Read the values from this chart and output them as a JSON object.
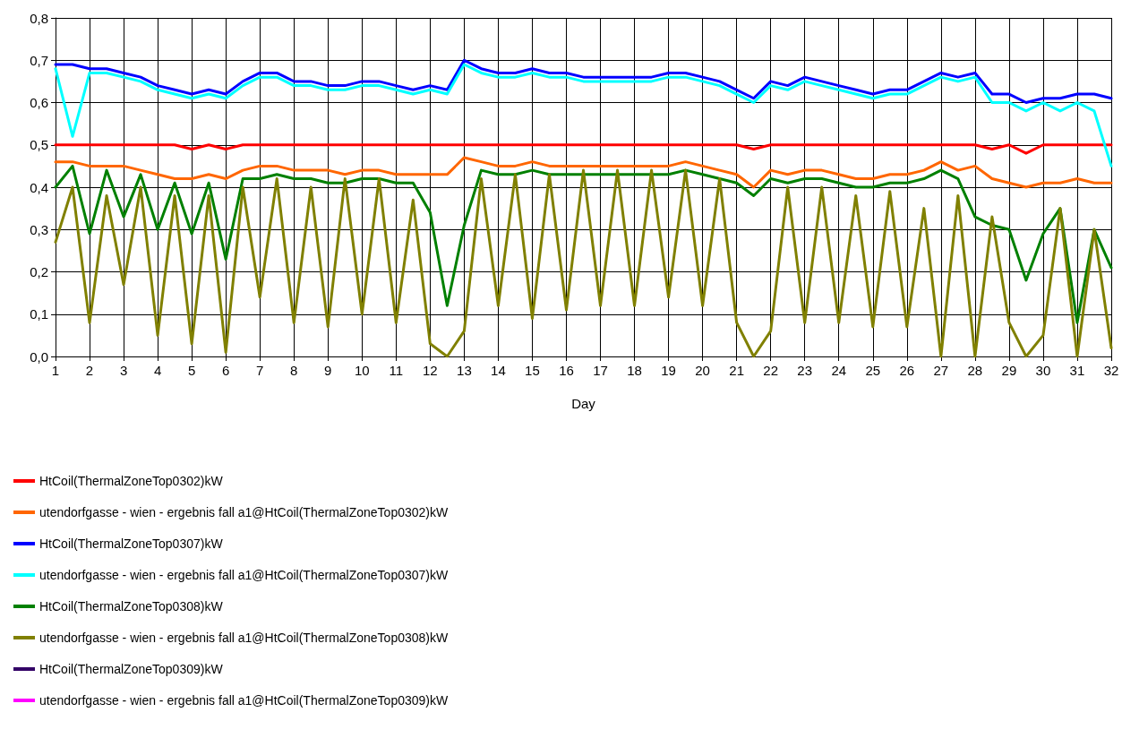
{
  "chart_data": {
    "type": "line",
    "xlabel": "Day",
    "x": [
      1,
      1.5,
      2,
      2.5,
      3,
      3.5,
      4,
      4.5,
      5,
      5.5,
      6,
      6.5,
      7,
      7.5,
      8,
      8.5,
      9,
      9.5,
      10,
      10.5,
      11,
      11.5,
      12,
      12.5,
      13,
      13.5,
      14,
      14.5,
      15,
      15.5,
      16,
      16.5,
      17,
      17.5,
      18,
      18.5,
      19,
      19.5,
      20,
      20.5,
      21,
      21.5,
      22,
      22.5,
      23,
      23.5,
      24,
      24.5,
      25,
      25.5,
      26,
      26.5,
      27,
      27.5,
      28,
      28.5,
      29,
      29.5,
      30,
      30.5,
      31,
      31.5,
      32
    ],
    "series": [
      {
        "name": "HtCoil(ThermalZoneTop0302)kW",
        "color": "#ff0000",
        "values": [
          0.5,
          0.5,
          0.5,
          0.5,
          0.5,
          0.5,
          0.5,
          0.5,
          0.49,
          0.5,
          0.49,
          0.5,
          0.5,
          0.5,
          0.5,
          0.5,
          0.5,
          0.5,
          0.5,
          0.5,
          0.5,
          0.5,
          0.5,
          0.5,
          0.5,
          0.5,
          0.5,
          0.5,
          0.5,
          0.5,
          0.5,
          0.5,
          0.5,
          0.5,
          0.5,
          0.5,
          0.5,
          0.5,
          0.5,
          0.5,
          0.5,
          0.49,
          0.5,
          0.5,
          0.5,
          0.5,
          0.5,
          0.5,
          0.5,
          0.5,
          0.5,
          0.5,
          0.5,
          0.5,
          0.5,
          0.49,
          0.5,
          0.48,
          0.5,
          0.5,
          0.5,
          0.5,
          0.5
        ]
      },
      {
        "name": "utendorfgasse - wien - ergebnis fall a1@HtCoil(ThermalZoneTop0302)kW",
        "color": "#ff6600",
        "values": [
          0.46,
          0.46,
          0.45,
          0.45,
          0.45,
          0.44,
          0.43,
          0.42,
          0.42,
          0.43,
          0.42,
          0.44,
          0.45,
          0.45,
          0.44,
          0.44,
          0.44,
          0.43,
          0.44,
          0.44,
          0.43,
          0.43,
          0.43,
          0.43,
          0.47,
          0.46,
          0.45,
          0.45,
          0.46,
          0.45,
          0.45,
          0.45,
          0.45,
          0.45,
          0.45,
          0.45,
          0.45,
          0.46,
          0.45,
          0.44,
          0.43,
          0.4,
          0.44,
          0.43,
          0.44,
          0.44,
          0.43,
          0.42,
          0.42,
          0.43,
          0.43,
          0.44,
          0.46,
          0.44,
          0.45,
          0.42,
          0.41,
          0.4,
          0.41,
          0.41,
          0.42,
          0.41,
          0.41
        ]
      },
      {
        "name": "HtCoil(ThermalZoneTop0307)kW",
        "color": "#0000ff",
        "values": [
          0.69,
          0.69,
          0.68,
          0.68,
          0.67,
          0.66,
          0.64,
          0.63,
          0.62,
          0.63,
          0.62,
          0.65,
          0.67,
          0.67,
          0.65,
          0.65,
          0.64,
          0.64,
          0.65,
          0.65,
          0.64,
          0.63,
          0.64,
          0.63,
          0.7,
          0.68,
          0.67,
          0.67,
          0.68,
          0.67,
          0.67,
          0.66,
          0.66,
          0.66,
          0.66,
          0.66,
          0.67,
          0.67,
          0.66,
          0.65,
          0.63,
          0.61,
          0.65,
          0.64,
          0.66,
          0.65,
          0.64,
          0.63,
          0.62,
          0.63,
          0.63,
          0.65,
          0.67,
          0.66,
          0.67,
          0.62,
          0.62,
          0.6,
          0.61,
          0.61,
          0.62,
          0.62,
          0.61
        ]
      },
      {
        "name": "utendorfgasse - wien - ergebnis fall a1@HtCoil(ThermalZoneTop0307)kW",
        "color": "#00ffff",
        "values": [
          0.68,
          0.52,
          0.67,
          0.67,
          0.66,
          0.65,
          0.63,
          0.62,
          0.61,
          0.62,
          0.61,
          0.64,
          0.66,
          0.66,
          0.64,
          0.64,
          0.63,
          0.63,
          0.64,
          0.64,
          0.63,
          0.62,
          0.63,
          0.62,
          0.69,
          0.67,
          0.66,
          0.66,
          0.67,
          0.66,
          0.66,
          0.65,
          0.65,
          0.65,
          0.65,
          0.65,
          0.66,
          0.66,
          0.65,
          0.64,
          0.62,
          0.6,
          0.64,
          0.63,
          0.65,
          0.64,
          0.63,
          0.62,
          0.61,
          0.62,
          0.62,
          0.64,
          0.66,
          0.65,
          0.66,
          0.6,
          0.6,
          0.58,
          0.6,
          0.58,
          0.6,
          0.58,
          0.45
        ]
      },
      {
        "name": "HtCoil(ThermalZoneTop0308)kW",
        "color": "#008000",
        "values": [
          0.4,
          0.45,
          0.29,
          0.44,
          0.33,
          0.43,
          0.3,
          0.41,
          0.29,
          0.41,
          0.23,
          0.42,
          0.42,
          0.43,
          0.42,
          0.42,
          0.41,
          0.41,
          0.42,
          0.42,
          0.41,
          0.41,
          0.34,
          0.12,
          0.31,
          0.44,
          0.43,
          0.43,
          0.44,
          0.43,
          0.43,
          0.43,
          0.43,
          0.43,
          0.43,
          0.43,
          0.43,
          0.44,
          0.43,
          0.42,
          0.41,
          0.38,
          0.42,
          0.41,
          0.42,
          0.42,
          0.41,
          0.4,
          0.4,
          0.41,
          0.41,
          0.42,
          0.44,
          0.42,
          0.33,
          0.31,
          0.3,
          0.18,
          0.29,
          0.35,
          0.08,
          0.3,
          0.21
        ]
      },
      {
        "name": "utendorfgasse - wien - ergebnis fall a1@HtCoil(ThermalZoneTop0308)kW",
        "color": "#808000",
        "values": [
          0.27,
          0.4,
          0.08,
          0.38,
          0.17,
          0.4,
          0.05,
          0.38,
          0.03,
          0.38,
          0.01,
          0.4,
          0.14,
          0.42,
          0.08,
          0.4,
          0.07,
          0.42,
          0.1,
          0.42,
          0.08,
          0.37,
          0.03,
          0.0,
          0.06,
          0.42,
          0.12,
          0.43,
          0.09,
          0.43,
          0.11,
          0.44,
          0.12,
          0.44,
          0.12,
          0.44,
          0.14,
          0.44,
          0.12,
          0.42,
          0.08,
          0.0,
          0.06,
          0.4,
          0.08,
          0.4,
          0.08,
          0.38,
          0.07,
          0.39,
          0.07,
          0.35,
          0.0,
          0.38,
          0.0,
          0.33,
          0.08,
          0.0,
          0.05,
          0.35,
          0.0,
          0.3,
          0.02
        ]
      },
      {
        "name": "HtCoil(ThermalZoneTop0309)kW",
        "color": "#330066",
        "values": [
          null,
          null,
          null,
          null,
          null,
          null,
          null,
          null,
          null,
          null,
          null,
          null,
          null,
          null,
          null,
          null,
          null,
          null,
          null,
          null,
          null,
          null,
          null,
          null,
          null,
          null,
          null,
          null,
          null,
          null,
          null,
          null,
          null,
          null,
          null,
          null,
          null,
          null,
          null,
          null,
          null,
          null,
          null,
          null,
          null,
          null,
          null,
          null,
          null,
          null,
          null,
          null,
          null,
          null,
          null,
          null,
          null,
          null,
          null,
          null,
          null,
          null,
          null
        ]
      },
      {
        "name": "utendorfgasse - wien - ergebnis fall a1@HtCoil(ThermalZoneTop0309)kW",
        "color": "#ff00ff",
        "values": [
          null,
          null,
          null,
          null,
          null,
          null,
          null,
          null,
          null,
          null,
          null,
          null,
          null,
          null,
          null,
          null,
          null,
          null,
          null,
          null,
          null,
          null,
          null,
          null,
          null,
          null,
          null,
          null,
          null,
          null,
          null,
          null,
          null,
          null,
          null,
          null,
          null,
          null,
          null,
          null,
          null,
          null,
          null,
          null,
          null,
          null,
          null,
          null,
          null,
          null,
          null,
          null,
          null,
          null,
          null,
          null,
          null,
          null,
          null,
          null,
          null,
          null,
          null
        ]
      }
    ],
    "xlim": [
      1,
      32
    ],
    "xticks": [
      1,
      2,
      3,
      4,
      5,
      6,
      7,
      8,
      9,
      10,
      11,
      12,
      13,
      14,
      15,
      16,
      17,
      18,
      19,
      20,
      21,
      22,
      23,
      24,
      25,
      26,
      27,
      28,
      29,
      30,
      31,
      32
    ],
    "ylim": [
      0,
      0.8
    ],
    "yticks": [
      {
        "value": 0,
        "label": "0,0"
      },
      {
        "value": 0.1,
        "label": "0,1"
      },
      {
        "value": 0.2,
        "label": "0,2"
      },
      {
        "value": 0.3,
        "label": "0,3"
      },
      {
        "value": 0.4,
        "label": "0,4"
      },
      {
        "value": 0.5,
        "label": "0,5"
      },
      {
        "value": 0.6,
        "label": "0,6"
      },
      {
        "value": 0.7,
        "label": "0,7"
      },
      {
        "value": 0.8,
        "label": "0,8"
      }
    ],
    "grid": true,
    "legend": "bottom",
    "marker": "none",
    "line_style": "solid"
  }
}
